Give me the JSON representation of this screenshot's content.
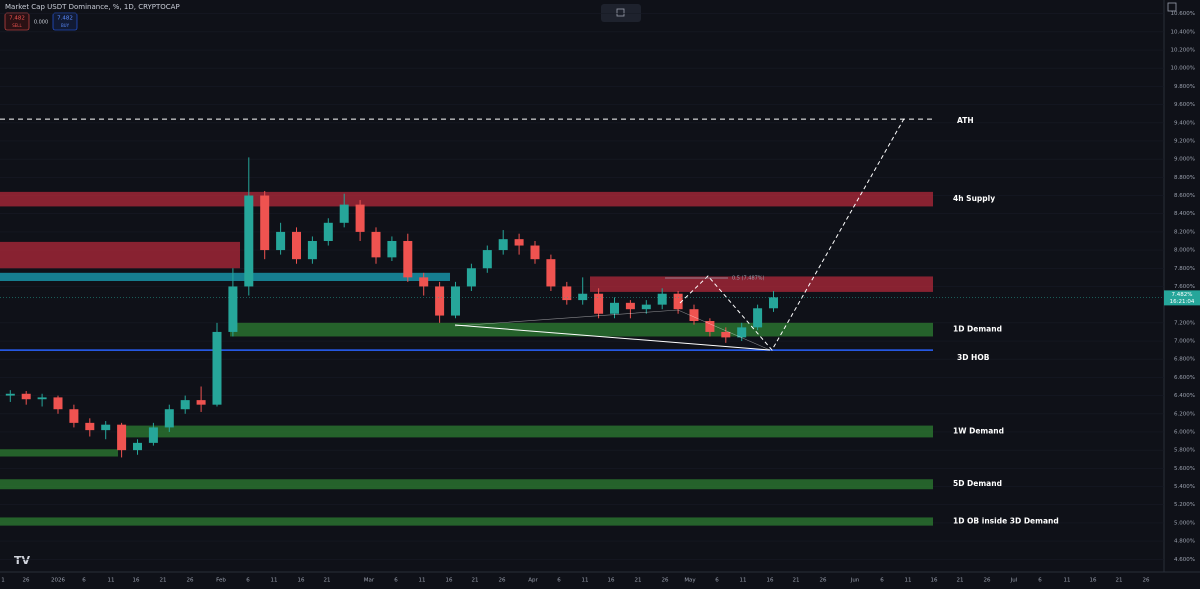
{
  "header": {
    "title": "Market Cap USDT Dominance, %, 1D, CRYPTOCAP",
    "sell_price": "7.482",
    "sell_label": "SELL",
    "spread": "0.000",
    "buy_price": "7.482",
    "buy_label": "BUY",
    "last_price": "7.482%",
    "countdown": "16:21:04",
    "fib_label": "0.5 (7.487%)"
  },
  "chart_data": {
    "type": "candlestick",
    "ylim": [
      4.46,
      10.75
    ],
    "yticks": [
      {
        "value": 4.6,
        "label": "4.600%"
      },
      {
        "value": 4.8,
        "label": "4.800%"
      },
      {
        "value": 5.0,
        "label": "5.000%"
      },
      {
        "value": 5.2,
        "label": "5.200%"
      },
      {
        "value": 5.4,
        "label": "5.400%"
      },
      {
        "value": 5.6,
        "label": "5.600%"
      },
      {
        "value": 5.8,
        "label": "5.800%"
      },
      {
        "value": 6.0,
        "label": "6.000%"
      },
      {
        "value": 6.2,
        "label": "6.200%"
      },
      {
        "value": 6.4,
        "label": "6.400%"
      },
      {
        "value": 6.6,
        "label": "6.600%"
      },
      {
        "value": 6.8,
        "label": "6.800%"
      },
      {
        "value": 7.0,
        "label": "7.000%"
      },
      {
        "value": 7.2,
        "label": "7.200%"
      },
      {
        "value": 7.6,
        "label": "7.600%"
      },
      {
        "value": 7.8,
        "label": "7.800%"
      },
      {
        "value": 8.0,
        "label": "8.000%"
      },
      {
        "value": 8.2,
        "label": "8.200%"
      },
      {
        "value": 8.4,
        "label": "8.400%"
      },
      {
        "value": 8.6,
        "label": "8.600%"
      },
      {
        "value": 8.8,
        "label": "8.800%"
      },
      {
        "value": 9.0,
        "label": "9.000%"
      },
      {
        "value": 9.2,
        "label": "9.200%"
      },
      {
        "value": 9.4,
        "label": "9.400%"
      },
      {
        "value": 9.6,
        "label": "9.600%"
      },
      {
        "value": 9.8,
        "label": "9.800%"
      },
      {
        "value": 10.0,
        "label": "10.000%"
      },
      {
        "value": 10.2,
        "label": "10.200%"
      },
      {
        "value": 10.4,
        "label": "10.400%"
      },
      {
        "value": 10.6,
        "label": "10.600%"
      }
    ],
    "categories": [
      "1",
      "26",
      "2026",
      "6",
      "11",
      "16",
      "21",
      "26",
      "Feb",
      "6",
      "11",
      "16",
      "21",
      "Mar",
      "6",
      "11",
      "16",
      "21",
      "26",
      "Apr",
      "6",
      "11",
      "16",
      "21",
      "26",
      "May",
      "6",
      "11",
      "16",
      "21",
      "26",
      "Jun",
      "6",
      "11",
      "16",
      "21",
      "26",
      "Jul",
      "6",
      "11",
      "16",
      "21",
      "26"
    ],
    "up_color": "#26a69a",
    "down_color": "#ef5350",
    "ohlc": [
      [
        6.35,
        6.45,
        6.3,
        6.4
      ],
      [
        6.4,
        6.46,
        6.33,
        6.42
      ],
      [
        6.42,
        6.45,
        6.3,
        6.36
      ],
      [
        6.36,
        6.42,
        6.28,
        6.38
      ],
      [
        6.38,
        6.4,
        6.2,
        6.25
      ],
      [
        6.25,
        6.3,
        6.05,
        6.1
      ],
      [
        6.1,
        6.15,
        5.95,
        6.02
      ],
      [
        6.02,
        6.12,
        5.92,
        6.08
      ],
      [
        6.08,
        6.1,
        5.72,
        5.8
      ],
      [
        5.8,
        5.92,
        5.75,
        5.88
      ],
      [
        5.88,
        6.1,
        5.85,
        6.05
      ],
      [
        6.05,
        6.3,
        6.0,
        6.25
      ],
      [
        6.25,
        6.4,
        6.2,
        6.35
      ],
      [
        6.35,
        6.5,
        6.22,
        6.3
      ],
      [
        6.3,
        7.2,
        6.28,
        7.1
      ],
      [
        7.1,
        7.8,
        7.05,
        7.6
      ],
      [
        7.6,
        9.02,
        7.5,
        8.6
      ],
      [
        8.6,
        8.65,
        7.9,
        8.0
      ],
      [
        8.0,
        8.3,
        7.95,
        8.2
      ],
      [
        8.2,
        8.25,
        7.85,
        7.9
      ],
      [
        7.9,
        8.15,
        7.85,
        8.1
      ],
      [
        8.1,
        8.35,
        8.05,
        8.3
      ],
      [
        8.3,
        8.62,
        8.25,
        8.5
      ],
      [
        8.5,
        8.55,
        8.1,
        8.2
      ],
      [
        8.2,
        8.25,
        7.85,
        7.92
      ],
      [
        7.92,
        8.15,
        7.88,
        8.1
      ],
      [
        8.1,
        8.18,
        7.65,
        7.7
      ],
      [
        7.7,
        7.75,
        7.5,
        7.6
      ],
      [
        7.6,
        7.65,
        7.2,
        7.28
      ],
      [
        7.28,
        7.65,
        7.25,
        7.6
      ],
      [
        7.6,
        7.85,
        7.55,
        7.8
      ],
      [
        7.8,
        8.05,
        7.75,
        8.0
      ],
      [
        8.0,
        8.22,
        7.95,
        8.12
      ],
      [
        8.12,
        8.18,
        7.95,
        8.05
      ],
      [
        8.05,
        8.1,
        7.85,
        7.9
      ],
      [
        7.9,
        7.95,
        7.55,
        7.6
      ],
      [
        7.6,
        7.65,
        7.4,
        7.45
      ],
      [
        7.45,
        7.7,
        7.4,
        7.52
      ],
      [
        7.52,
        7.58,
        7.25,
        7.3
      ],
      [
        7.3,
        7.48,
        7.25,
        7.42
      ],
      [
        7.42,
        7.45,
        7.25,
        7.35
      ],
      [
        7.35,
        7.45,
        7.3,
        7.4
      ],
      [
        7.4,
        7.58,
        7.35,
        7.52
      ],
      [
        7.52,
        7.55,
        7.3,
        7.35
      ],
      [
        7.35,
        7.4,
        7.18,
        7.22
      ],
      [
        7.22,
        7.25,
        7.05,
        7.1
      ],
      [
        7.1,
        7.15,
        6.98,
        7.04
      ],
      [
        7.04,
        7.2,
        7.0,
        7.15
      ],
      [
        7.15,
        7.4,
        7.12,
        7.36
      ],
      [
        7.36,
        7.55,
        7.32,
        7.48
      ]
    ],
    "zones": [
      {
        "label": "4h Supply",
        "top": 8.64,
        "bottom": 8.48,
        "color": "#b2283a"
      },
      {
        "top": 8.09,
        "bottom": 7.8,
        "color": "#b2283a"
      },
      {
        "top": 7.71,
        "bottom": 7.54,
        "color": "#b2283a"
      },
      {
        "top": 7.75,
        "bottom": 7.66,
        "color": "#1aa3b8"
      },
      {
        "label": "1D Demand",
        "top": 7.2,
        "bottom": 7.05,
        "color": "#2e7d32"
      },
      {
        "label": "1W Demand",
        "top": 6.07,
        "bottom": 5.94,
        "color": "#2e7d32"
      },
      {
        "top": 5.81,
        "bottom": 5.73,
        "color": "#2e7d32"
      },
      {
        "label": "5D Demand",
        "top": 5.48,
        "bottom": 5.37,
        "color": "#2e7d32"
      },
      {
        "label": "1D OB inside 3D Demand",
        "top": 5.06,
        "bottom": 4.97,
        "color": "#2e7d32"
      }
    ],
    "levels": [
      {
        "label": "ATH",
        "value": 9.44
      },
      {
        "label": "3D HOB",
        "value": 6.9
      }
    ]
  }
}
